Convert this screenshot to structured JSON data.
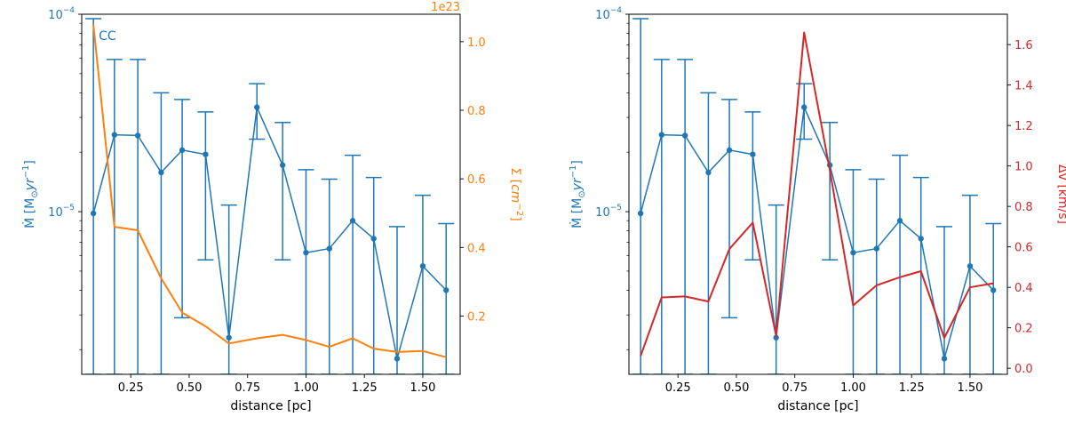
{
  "colors": {
    "series_blue": "#1f77b4",
    "sigma_orange": "#ff7f0e",
    "dv_red": "#d62728",
    "axis_black": "#000000"
  },
  "chart_data": [
    {
      "type": "line",
      "panel": "left",
      "xlabel": "distance [pc]",
      "x_ticks": [
        "0.25",
        "0.50",
        "0.75",
        "1.00",
        "1.25",
        "1.50"
      ],
      "xlim": [
        0.04,
        1.66
      ],
      "y_left": {
        "label_parts": [
          "Ṁ [M",
          "⊙",
          "yr",
          "−1",
          "]"
        ],
        "scale": "log",
        "ylim": [
          1.5e-06,
          0.0001
        ],
        "tick_labels": [
          {
            "base": "10",
            "exp": "−4",
            "value": 0.0001
          },
          {
            "base": "10",
            "exp": "−5",
            "value": 1e-05
          }
        ]
      },
      "y_right": {
        "label_parts": [
          "Σ [",
          "cm",
          "−2",
          "]"
        ],
        "offset_label": "1e23",
        "ylim": [
          0.03,
          1.08
        ],
        "tick_labels": [
          "0.2",
          "0.4",
          "0.6",
          "0.8",
          "1.0"
        ],
        "tick_values": [
          0.2,
          0.4,
          0.6,
          0.8,
          1.0
        ]
      },
      "annotation": "CC",
      "series": [
        {
          "name": "Mdot",
          "axis": "left",
          "color": "#1f77b4",
          "x": [
            0.09,
            0.18,
            0.28,
            0.38,
            0.47,
            0.57,
            0.67,
            0.79,
            0.9,
            1.0,
            1.1,
            1.2,
            1.29,
            1.39,
            1.5,
            1.6
          ],
          "y": [
            9.8e-06,
            2.45e-05,
            2.43e-05,
            1.58e-05,
            2.05e-05,
            1.95e-05,
            2.3e-06,
            3.38e-05,
            1.72e-05,
            6.2e-06,
            6.5e-06,
            9e-06,
            7.3e-06,
            1.8e-06,
            5.3e-06,
            4e-06
          ],
          "yerr_high": [
            9.5e-05,
            5.9e-05,
            5.9e-05,
            4e-05,
            3.7e-05,
            3.2e-05,
            1.08e-05,
            4.45e-05,
            2.83e-05,
            1.63e-05,
            1.46e-05,
            1.93e-05,
            1.49e-05,
            8.4e-06,
            1.21e-05,
            8.7e-06
          ],
          "yerr_low": [
            1.5e-06,
            1.5e-06,
            1.5e-06,
            1.5e-06,
            2.9e-06,
            5.7e-06,
            1.5e-06,
            2.33e-05,
            5.7e-06,
            1.5e-06,
            1.5e-06,
            1.5e-06,
            1.5e-06,
            1.5e-06,
            1.5e-06,
            1.5e-06
          ]
        },
        {
          "name": "Sigma",
          "axis": "right",
          "color": "#ff7f0e",
          "x": [
            0.09,
            0.18,
            0.28,
            0.38,
            0.47,
            0.57,
            0.67,
            0.79,
            0.9,
            1.0,
            1.1,
            1.2,
            1.29,
            1.39,
            1.5,
            1.6
          ],
          "y": [
            1.05,
            0.46,
            0.45,
            0.31,
            0.21,
            0.17,
            0.12,
            0.135,
            0.145,
            0.13,
            0.11,
            0.135,
            0.105,
            0.095,
            0.098,
            0.08
          ]
        }
      ]
    },
    {
      "type": "line",
      "panel": "right",
      "xlabel": "distance [pc]",
      "x_ticks": [
        "0.25",
        "0.50",
        "0.75",
        "1.00",
        "1.25",
        "1.50"
      ],
      "xlim": [
        0.04,
        1.66
      ],
      "y_left": {
        "label_parts": [
          "Ṁ [M",
          "⊙",
          "yr",
          "−1",
          "]"
        ],
        "scale": "log",
        "ylim": [
          1.5e-06,
          0.0001
        ],
        "tick_labels": [
          {
            "base": "10",
            "exp": "−4",
            "value": 0.0001
          },
          {
            "base": "10",
            "exp": "−5",
            "value": 1e-05
          }
        ]
      },
      "y_right": {
        "label": "Δv [km/s]",
        "ylim": [
          -0.03,
          1.75
        ],
        "tick_labels": [
          "0.0",
          "0.2",
          "0.4",
          "0.6",
          "0.8",
          "1.0",
          "1.2",
          "1.4",
          "1.6"
        ],
        "tick_values": [
          0.0,
          0.2,
          0.4,
          0.6,
          0.8,
          1.0,
          1.2,
          1.4,
          1.6
        ]
      },
      "series": [
        {
          "name": "Mdot",
          "axis": "left",
          "color": "#1f77b4",
          "x": [
            0.09,
            0.18,
            0.28,
            0.38,
            0.47,
            0.57,
            0.67,
            0.79,
            0.9,
            1.0,
            1.1,
            1.2,
            1.29,
            1.39,
            1.5,
            1.6
          ],
          "y": [
            9.8e-06,
            2.45e-05,
            2.43e-05,
            1.58e-05,
            2.05e-05,
            1.95e-05,
            2.3e-06,
            3.38e-05,
            1.72e-05,
            6.2e-06,
            6.5e-06,
            9e-06,
            7.3e-06,
            1.8e-06,
            5.3e-06,
            4e-06
          ],
          "yerr_high": [
            9.5e-05,
            5.9e-05,
            5.9e-05,
            4e-05,
            3.7e-05,
            3.2e-05,
            1.08e-05,
            4.45e-05,
            2.83e-05,
            1.63e-05,
            1.46e-05,
            1.93e-05,
            1.49e-05,
            8.4e-06,
            1.21e-05,
            8.7e-06
          ],
          "yerr_low": [
            1.5e-06,
            1.5e-06,
            1.5e-06,
            1.5e-06,
            2.9e-06,
            5.7e-06,
            1.5e-06,
            2.33e-05,
            5.7e-06,
            1.5e-06,
            1.5e-06,
            1.5e-06,
            1.5e-06,
            1.5e-06,
            1.5e-06,
            1.5e-06
          ]
        },
        {
          "name": "dv",
          "axis": "right",
          "color": "#d62728",
          "x": [
            0.09,
            0.18,
            0.28,
            0.38,
            0.47,
            0.57,
            0.67,
            0.79,
            0.9,
            1.0,
            1.1,
            1.2,
            1.29,
            1.39,
            1.5,
            1.6
          ],
          "y": [
            0.06,
            0.35,
            0.355,
            0.33,
            0.59,
            0.72,
            0.16,
            1.66,
            0.98,
            0.31,
            0.41,
            0.45,
            0.48,
            0.15,
            0.4,
            0.42
          ]
        }
      ]
    }
  ]
}
